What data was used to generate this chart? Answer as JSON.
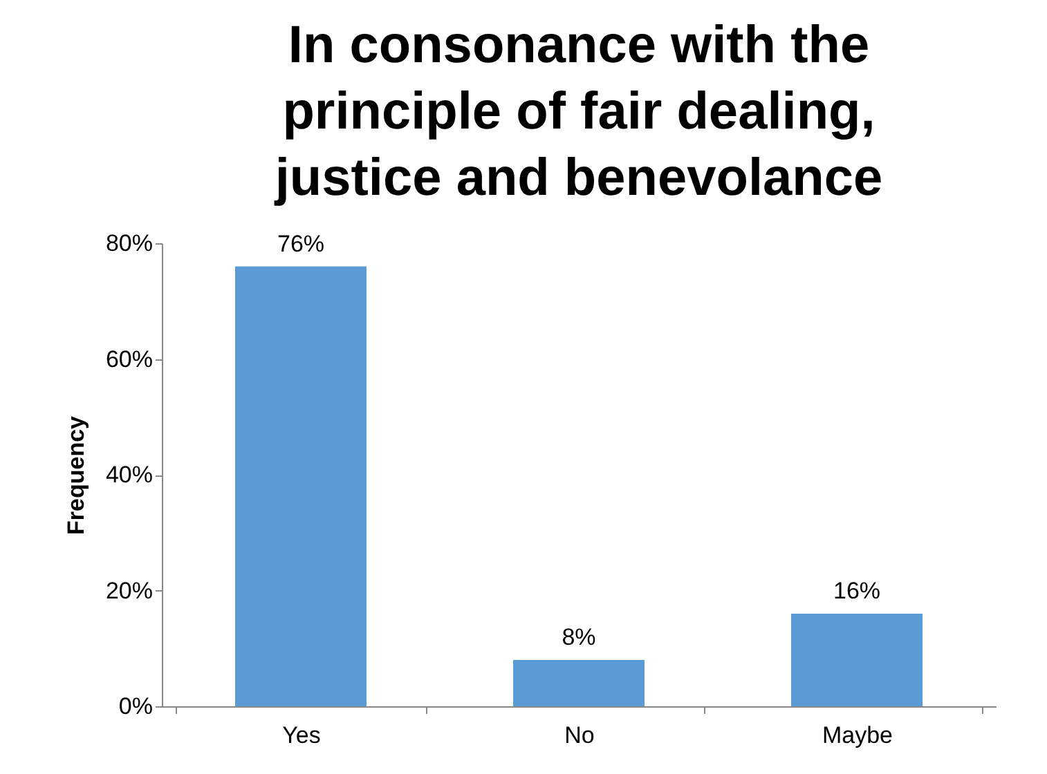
{
  "chart_data": {
    "type": "bar",
    "title": "In consonance with the principle of fair dealing, justice and benevolance",
    "ylabel": "Frequency",
    "categories": [
      "Yes",
      "No",
      "Maybe"
    ],
    "values": [
      76,
      8,
      16
    ],
    "color": "#5b9bd5",
    "value_labels": [
      "76%",
      "8%",
      "16%"
    ],
    "ylim": [
      0,
      80
    ],
    "yticks": [
      {
        "value": 0,
        "label": "0%"
      },
      {
        "value": 20,
        "label": "20%"
      },
      {
        "value": 40,
        "label": "40%"
      },
      {
        "value": 60,
        "label": "60%"
      },
      {
        "value": 80,
        "label": "80%"
      }
    ],
    "grid": false
  }
}
